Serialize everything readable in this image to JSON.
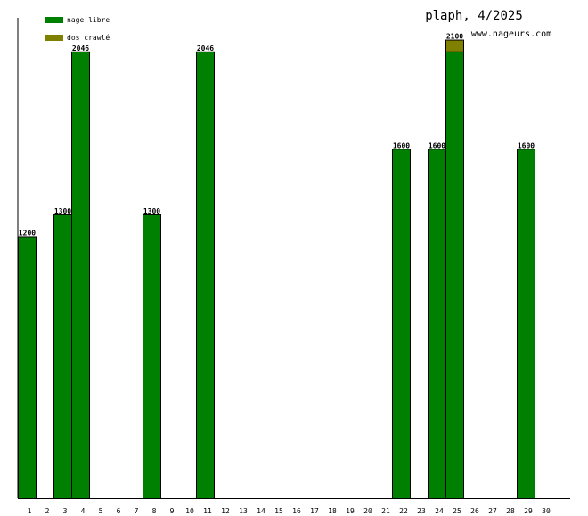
{
  "chart_data": {
    "type": "bar",
    "stacked": true,
    "title": "plaph, 4/2025",
    "subtitle": "www.nageurs.com",
    "legend_position": "top-left",
    "grid": false,
    "ylim": [
      0,
      2200
    ],
    "categories": [
      "1",
      "2",
      "3",
      "4",
      "5",
      "6",
      "7",
      "8",
      "9",
      "10",
      "11",
      "12",
      "13",
      "14",
      "15",
      "16",
      "17",
      "18",
      "19",
      "20",
      "21",
      "22",
      "23",
      "24",
      "25",
      "26",
      "27",
      "28",
      "29",
      "30"
    ],
    "series": [
      {
        "name": "nage libre",
        "color": "#008000",
        "values": [
          1200,
          0,
          1300,
          2046,
          0,
          0,
          0,
          1300,
          0,
          0,
          2046,
          0,
          0,
          0,
          0,
          0,
          0,
          0,
          0,
          0,
          0,
          1600,
          0,
          1600,
          2046,
          0,
          0,
          0,
          1600,
          0
        ]
      },
      {
        "name": "dos crawlé",
        "color": "#808000",
        "values": [
          0,
          0,
          0,
          0,
          0,
          0,
          0,
          0,
          0,
          0,
          0,
          0,
          0,
          0,
          0,
          0,
          0,
          0,
          0,
          0,
          0,
          0,
          0,
          0,
          54,
          0,
          0,
          0,
          0,
          0
        ]
      }
    ],
    "totals": [
      1200,
      0,
      1300,
      2046,
      0,
      0,
      0,
      1300,
      0,
      0,
      2046,
      0,
      0,
      0,
      0,
      0,
      0,
      0,
      0,
      0,
      0,
      1600,
      0,
      1600,
      2100,
      0,
      0,
      0,
      1600,
      0
    ]
  }
}
